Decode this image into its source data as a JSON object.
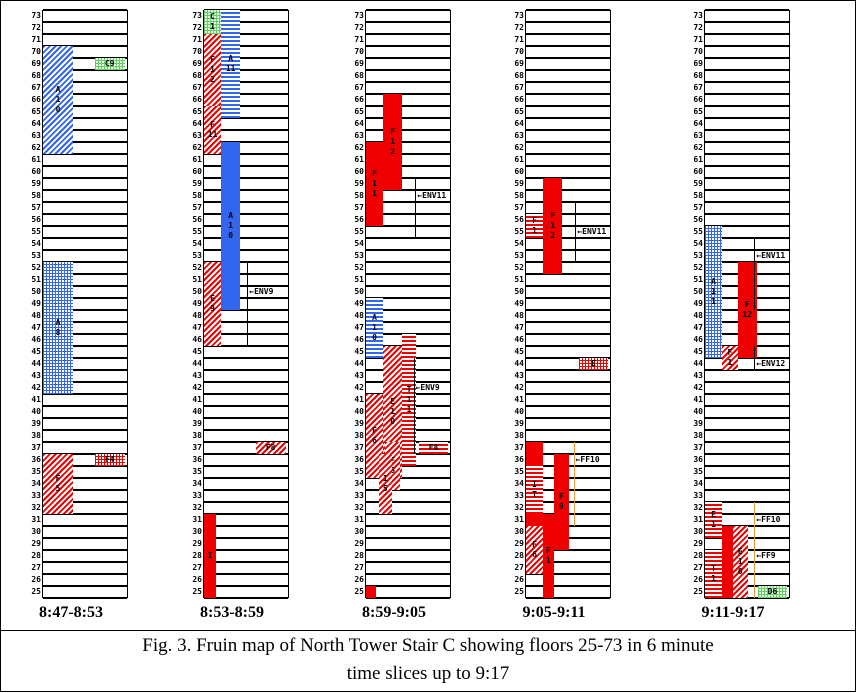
{
  "floors": {
    "min": 25,
    "max": 73
  },
  "colors": {
    "red": "#ee0000",
    "blue": "#3366ee",
    "green": "#66cc66",
    "orange": "#e89a3a"
  },
  "panels": [
    {
      "time": "8:47-8:53",
      "blocks": [
        {
          "label": "A\n1\n0",
          "floors": [
            62,
            70
          ],
          "col": [
            0,
            0.35
          ],
          "fill": "blue-diag"
        },
        {
          "label": "C9",
          "floors": [
            69,
            69
          ],
          "col": [
            0.6,
            0.95
          ],
          "fill": "green-grid"
        },
        {
          "label": "A\n8",
          "floors": [
            42,
            52
          ],
          "col": [
            0,
            0.35
          ],
          "fill": "blue-grid"
        },
        {
          "label": "F\n5",
          "floors": [
            32,
            36
          ],
          "col": [
            0,
            0.35
          ],
          "fill": "red-diag"
        },
        {
          "label": "F4",
          "floors": [
            36,
            36
          ],
          "col": [
            0.6,
            0.95
          ],
          "fill": "red-grid"
        }
      ],
      "annotations": []
    },
    {
      "time": "8:53-8:59",
      "blocks": [
        {
          "label": "C\n1",
          "floors": [
            72,
            73
          ],
          "col": [
            0,
            0.2
          ],
          "fill": "green-grid"
        },
        {
          "label": "A\n11",
          "floors": [
            65,
            73
          ],
          "col": [
            0.2,
            0.42
          ],
          "fill": "blue-hlines"
        },
        {
          "label": "F\n1\n2",
          "floors": [
            66,
            71
          ],
          "col": [
            0,
            0.2
          ],
          "fill": "red-diag"
        },
        {
          "label": "F\n11",
          "floors": [
            62,
            65
          ],
          "col": [
            0,
            0.2
          ],
          "fill": "red-diag"
        },
        {
          "label": "A\n1\n0",
          "floors": [
            49,
            62
          ],
          "col": [
            0.2,
            0.42
          ],
          "fill": "blue-solid"
        },
        {
          "label": "E\n9",
          "floors": [
            46,
            52
          ],
          "col": [
            0,
            0.2
          ],
          "fill": "red-diag"
        },
        {
          "label": "F8",
          "floors": [
            37,
            37
          ],
          "col": [
            0.6,
            0.95
          ],
          "fill": "red-diag"
        },
        {
          "label": "I",
          "floors": [
            25,
            31
          ],
          "col": [
            0,
            0.14
          ],
          "fill": "red-solid"
        }
      ],
      "annotations": [
        {
          "label": "ENV9",
          "floor": 50,
          "x": 0.55,
          "vline": [
            46,
            52
          ]
        }
      ]
    },
    {
      "time": "8:59-9:05",
      "blocks": [
        {
          "label": "F\n1\n2",
          "floors": [
            59,
            66
          ],
          "col": [
            0.2,
            0.42
          ],
          "fill": "red-solid"
        },
        {
          "label": "F\n1\n1",
          "floors": [
            56,
            62
          ],
          "col": [
            0,
            0.2
          ],
          "fill": "red-solid"
        },
        {
          "label": "A\n1\n0",
          "floors": [
            45,
            49
          ],
          "col": [
            0,
            0.2
          ],
          "fill": "blue-hlines"
        },
        {
          "label": "E\n1\n0",
          "floors": [
            35,
            45
          ],
          "col": [
            0.2,
            0.42
          ],
          "fill": "red-diag"
        },
        {
          "label": "T\n1\n1",
          "floors": [
            36,
            46
          ],
          "col": [
            0.42,
            0.58
          ],
          "fill": "red-hlines"
        },
        {
          "label": "F\n6",
          "floors": [
            35,
            41
          ],
          "col": [
            0,
            0.2
          ],
          "fill": "red-diag"
        },
        {
          "label": "F\n5",
          "floors": [
            34,
            37
          ],
          "col": [
            0.22,
            0.4
          ],
          "fill": "red-diag"
        },
        {
          "label": "1\n5",
          "floors": [
            32,
            36
          ],
          "col": [
            0.15,
            0.3
          ],
          "fill": "red-diag"
        },
        {
          "label": "F8",
          "floors": [
            37,
            37
          ],
          "col": [
            0.62,
            0.95
          ],
          "fill": "red-hlines"
        },
        {
          "label": "",
          "floors": [
            25,
            25
          ],
          "col": [
            0,
            0.12
          ],
          "fill": "red-solid"
        }
      ],
      "annotations": [
        {
          "label": "ENV11",
          "floor": 58,
          "x": 0.62,
          "vline": [
            55,
            59
          ]
        },
        {
          "label": "ENV9",
          "floor": 42,
          "x": 0.6,
          "vline": [
            37,
            44
          ]
        }
      ]
    },
    {
      "time": "9:05-9:11",
      "blocks": [
        {
          "label": "F\n1\n2",
          "floors": [
            52,
            59
          ],
          "col": [
            0.2,
            0.42
          ],
          "fill": "red-solid"
        },
        {
          "label": "F\n1",
          "floors": [
            55,
            56
          ],
          "col": [
            0,
            0.2
          ],
          "fill": "red-hlines"
        },
        {
          "label": "E\n1\n0",
          "floors": [
            31,
            37
          ],
          "col": [
            0,
            0.2
          ],
          "fill": "red-solid"
        },
        {
          "label": "I\nT",
          "floors": [
            32,
            35
          ],
          "col": [
            0,
            0.2
          ],
          "fill": "red-hlines"
        },
        {
          "label": "F\n6",
          "floors": [
            27,
            30
          ],
          "col": [
            0,
            0.2
          ],
          "fill": "red-diag"
        },
        {
          "label": "F\n1",
          "floors": [
            25,
            31
          ],
          "col": [
            0.2,
            0.32
          ],
          "fill": "red-solid"
        },
        {
          "label": "F\n9",
          "floors": [
            29,
            36
          ],
          "col": [
            0.32,
            0.5
          ],
          "fill": "red-solid"
        },
        {
          "label": "E",
          "floors": [
            44,
            44
          ],
          "col": [
            0.62,
            0.95
          ],
          "fill": "red-grid"
        }
      ],
      "annotations": [
        {
          "label": "ENV11",
          "floor": 55,
          "x": 0.62,
          "vline": [
            53,
            57
          ]
        },
        {
          "label": "FF10",
          "floor": 36,
          "x": 0.6,
          "vline": [
            31,
            37
          ]
        }
      ]
    },
    {
      "time": "9:11-9:17",
      "blocks": [
        {
          "label": "A\n1\n1",
          "floors": [
            45,
            55
          ],
          "col": [
            0,
            0.2
          ],
          "fill": "blue-grid"
        },
        {
          "label": "F\n12",
          "floors": [
            45,
            52
          ],
          "col": [
            0.38,
            0.6
          ],
          "fill": "red-solid"
        },
        {
          "label": "F\n1",
          "floors": [
            44,
            45
          ],
          "col": [
            0.2,
            0.38
          ],
          "fill": "red-diag"
        },
        {
          "label": "E\n1",
          "floors": [
            30,
            32
          ],
          "col": [
            0,
            0.2
          ],
          "fill": "red-hlines"
        },
        {
          "label": "T\n1",
          "floors": [
            25,
            28
          ],
          "col": [
            0,
            0.2
          ],
          "fill": "red-hlines"
        },
        {
          "label": "",
          "floors": [
            25,
            30
          ],
          "col": [
            0.2,
            0.32
          ],
          "fill": "red-solid"
        },
        {
          "label": "E\n1\n0",
          "floors": [
            25,
            30
          ],
          "col": [
            0.32,
            0.5
          ],
          "fill": "red-diag"
        },
        {
          "label": "D6",
          "floors": [
            25,
            25
          ],
          "col": [
            0.62,
            0.95
          ],
          "fill": "green-grid"
        }
      ],
      "annotations": [
        {
          "label": "ENV11",
          "floor": 53,
          "x": 0.62,
          "vline": [
            49,
            54
          ]
        },
        {
          "label": "ENV12",
          "floor": 44,
          "x": 0.62,
          "vline": [
            44,
            45
          ]
        },
        {
          "label": "FF10",
          "floor": 31,
          "x": 0.62,
          "vline": [
            25,
            32
          ]
        },
        {
          "label": "FF9",
          "floor": 28,
          "x": 0.62,
          "vline": [
            25,
            30
          ]
        }
      ]
    }
  ],
  "caption": {
    "line1": "Fig. 3. Fruin map of North Tower Stair C showing floors 25-73 in 6 minute",
    "line2": "time slices up to 9:17"
  }
}
